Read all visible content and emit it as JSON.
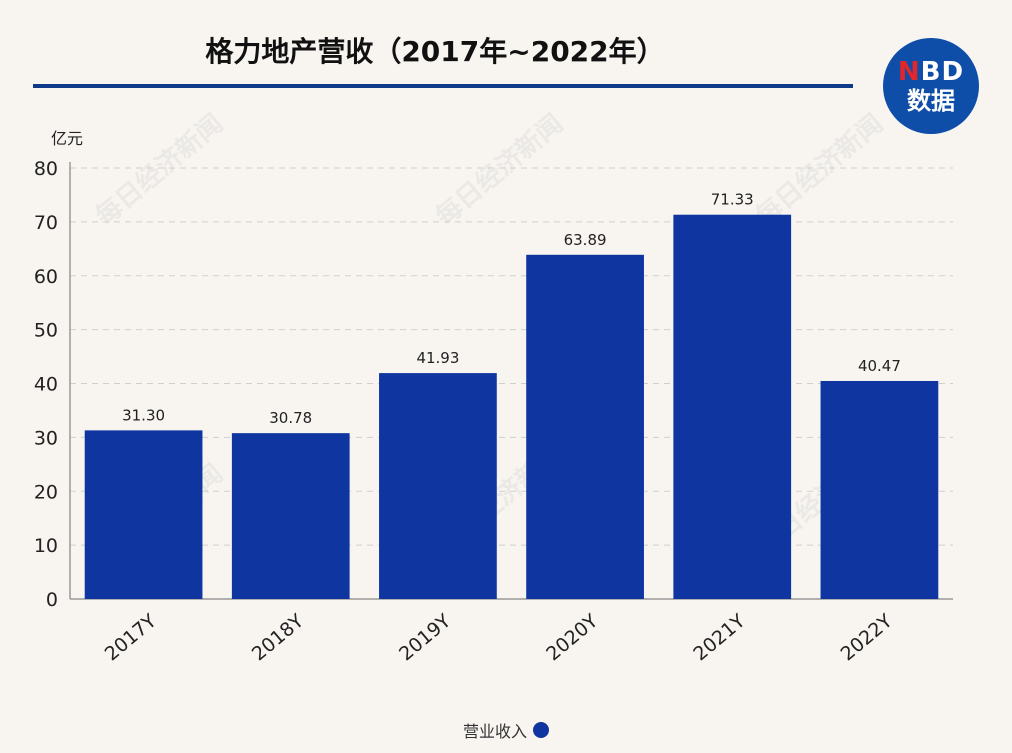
{
  "title": "格力地产营收（2017年~2022年）",
  "logo": {
    "line1_n": "N",
    "line1_rest": "BD",
    "line2": "数据"
  },
  "watermark": "每日经济新闻",
  "chart_data": {
    "type": "bar",
    "categories": [
      "2017Y",
      "2018Y",
      "2019Y",
      "2020Y",
      "2021Y",
      "2022Y"
    ],
    "series": [
      {
        "name": "营业收入",
        "values": [
          31.3,
          30.78,
          41.93,
          63.89,
          71.33,
          40.47
        ]
      }
    ],
    "value_labels": [
      "31.30",
      "30.78",
      "41.93",
      "63.89",
      "71.33",
      "40.47"
    ],
    "unit": "亿元",
    "ylim": [
      0,
      80
    ],
    "yticks": [
      0,
      10,
      20,
      30,
      40,
      50,
      60,
      70,
      80
    ],
    "grid": true,
    "legend_position": "bottom-center",
    "bar_color": "#0f36a0"
  }
}
